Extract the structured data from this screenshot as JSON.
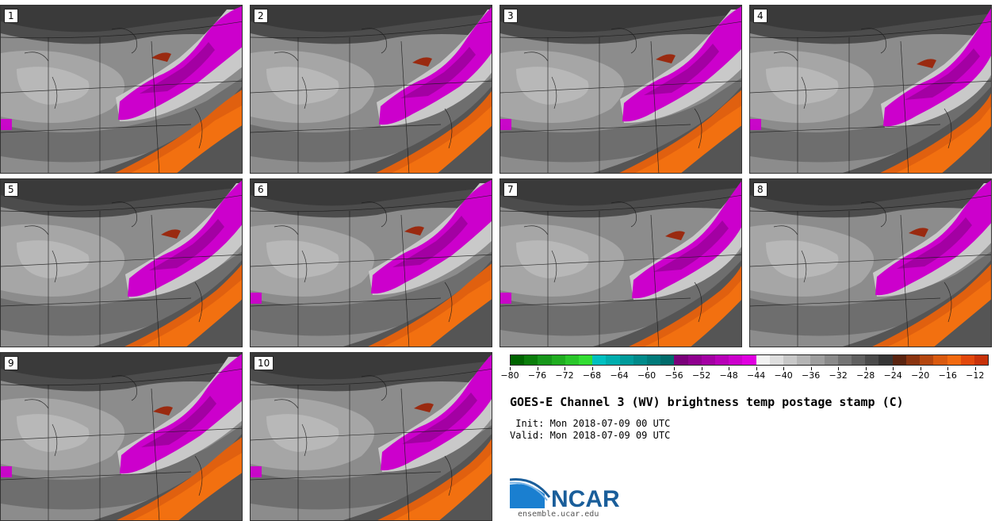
{
  "panels": [
    {
      "label": "1"
    },
    {
      "label": "2"
    },
    {
      "label": "3"
    },
    {
      "label": "4"
    },
    {
      "label": "5"
    },
    {
      "label": "6"
    },
    {
      "label": "7"
    },
    {
      "label": "8"
    },
    {
      "label": "9"
    },
    {
      "label": "10"
    }
  ],
  "colorbar": {
    "colors": [
      "#006400",
      "#0b7d0b",
      "#17961a",
      "#20ad20",
      "#2ac62a",
      "#33dd33",
      "#00c0c0",
      "#00adad",
      "#009b9b",
      "#008a8a",
      "#007a7a",
      "#006b6b",
      "#7a007a",
      "#8f008f",
      "#a300a3",
      "#b800b8",
      "#cc00cc",
      "#e000e0",
      "#f2f2f2",
      "#dedede",
      "#c8c8c8",
      "#b4b4b4",
      "#9e9e9e",
      "#8a8a8a",
      "#747474",
      "#606060",
      "#4a4a4a",
      "#363636",
      "#5a2410",
      "#8a3410",
      "#b4460f",
      "#d95a0f",
      "#f26a10",
      "#e2480c",
      "#c8320a"
    ],
    "ticks": [
      "−80",
      "−76",
      "−72",
      "−68",
      "−64",
      "−60",
      "−56",
      "−52",
      "−48",
      "−44",
      "−40",
      "−36",
      "−32",
      "−28",
      "−24",
      "−20",
      "−16",
      "−12"
    ]
  },
  "title": "GOES-E Channel 3 (WV) brightness temp postage stamp (C)",
  "init": " Init: Mon 2018-07-09 00 UTC",
  "valid": "Valid: Mon 2018-07-09 09 UTC",
  "logo": {
    "text": "NCAR",
    "url": "ensemble.ucar.edu",
    "brand_color": "#1a5e9a"
  }
}
